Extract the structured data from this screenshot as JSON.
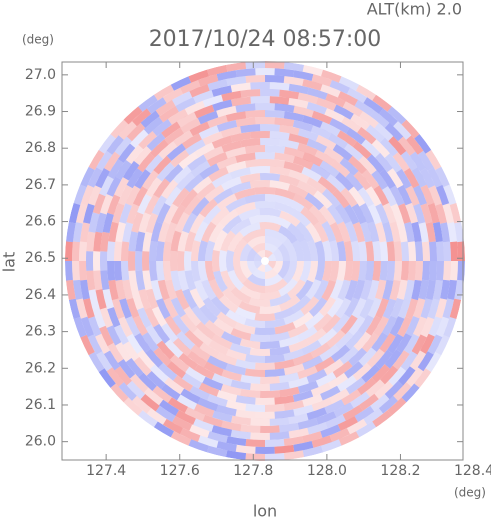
{
  "chart_data": {
    "type": "radar-ppi",
    "title": "2017/10/24 08:57:00",
    "subtitle": "ALT(km) 2.0",
    "x_label": "lon",
    "x_unit": "(deg)",
    "y_label": "lat",
    "y_unit": "(deg)",
    "xlim": [
      127.28,
      128.37
    ],
    "ylim": [
      25.95,
      27.035
    ],
    "xticks": [
      127.4,
      127.6,
      127.8,
      {
        "value": 128.0,
        "label": "128.0"
      },
      128.2,
      128.4
    ],
    "yticks": [
      {
        "value": 26.0,
        "label": "26.0"
      },
      26.1,
      26.2,
      26.3,
      26.4,
      26.5,
      26.6,
      26.7,
      26.8,
      26.9,
      {
        "value": 27.0,
        "label": "27.0"
      }
    ],
    "colors": [
      "#f06e6e",
      "#6e78f0"
    ]
  }
}
